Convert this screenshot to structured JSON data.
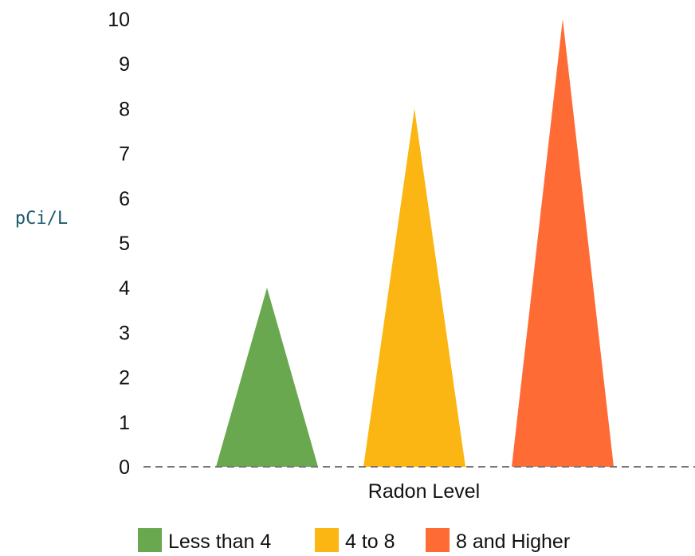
{
  "chart_data": {
    "type": "bar",
    "bar_shape": "triangle",
    "categories": [
      "Less than 4",
      "4 to 8",
      "8 and Higher"
    ],
    "values": [
      4,
      8,
      10
    ],
    "colors": [
      "#6aa84f",
      "#fbb614",
      "#ff6b35"
    ],
    "title": "",
    "xlabel": "Radon Level",
    "ylabel": "pCi/L",
    "ylim": [
      0,
      10
    ],
    "yticks": [
      "0",
      "1",
      "2",
      "3",
      "4",
      "5",
      "6",
      "7",
      "8",
      "9",
      "10"
    ],
    "grid": false,
    "baseline_style": "dashed",
    "baseline_color": "#777777",
    "legend": {
      "position": "bottom",
      "entries": [
        "Less than 4",
        "4 to 8",
        "8 and Higher"
      ]
    }
  }
}
